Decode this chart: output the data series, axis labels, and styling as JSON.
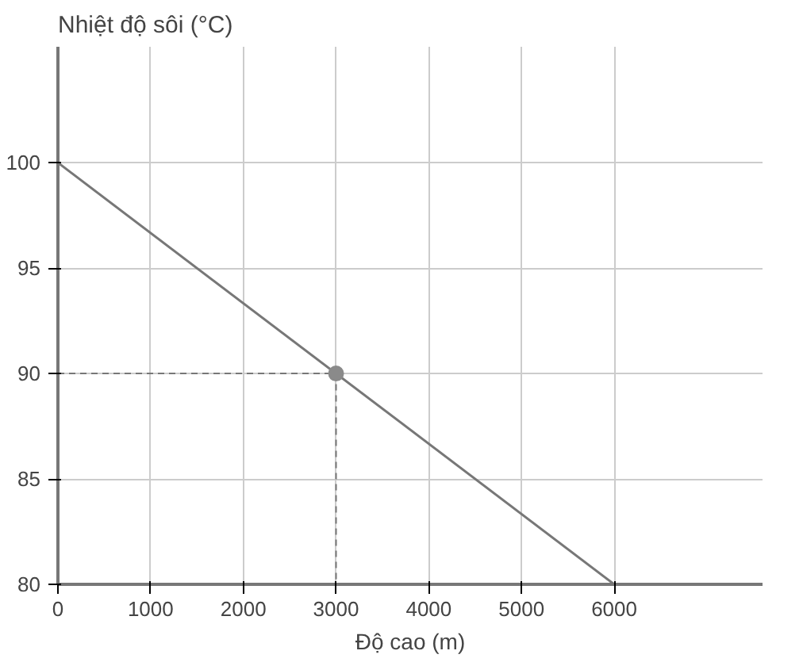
{
  "chart_data": {
    "type": "line",
    "xlabel": "Độ cao (m)",
    "ylabel": "Nhiệt độ sôi (°C)",
    "xlim": [
      0,
      7600
    ],
    "ylim": [
      80,
      105.5
    ],
    "xticks": [
      0,
      1000,
      2000,
      3000,
      4000,
      5000,
      6000
    ],
    "yticks": [
      80,
      85,
      90,
      95,
      100
    ],
    "grid": true,
    "series": [
      {
        "x": [
          0,
          6000
        ],
        "values": [
          100,
          80
        ],
        "color": "#777777",
        "line_style": "solid"
      },
      {
        "type": "line",
        "x": [
          0,
          3000,
          3000
        ],
        "values": [
          90,
          90,
          80
        ],
        "color": "#777777",
        "line_style": "dashed"
      },
      {
        "type": "scatter",
        "x": [
          3000
        ],
        "values": [
          90
        ],
        "color": "#8a8a8a",
        "marker": "circle"
      }
    ]
  }
}
